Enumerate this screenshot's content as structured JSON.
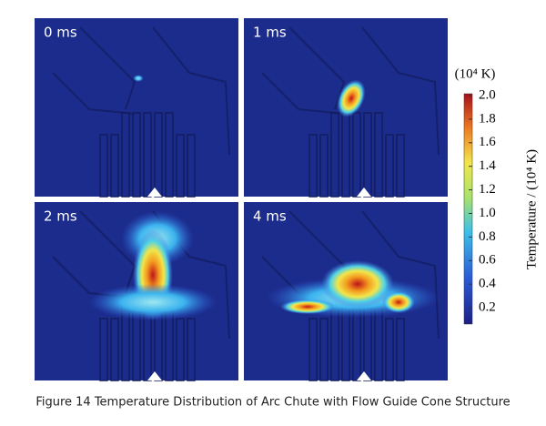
{
  "panels": [
    {
      "label": "0 ms"
    },
    {
      "label": "1 ms"
    },
    {
      "label": "2 ms"
    },
    {
      "label": "4 ms"
    }
  ],
  "colorbar": {
    "unit": "(10⁴ K)",
    "label": "Temperature / (10⁴ K)",
    "ticks": [
      "2.0",
      "1.8",
      "1.6",
      "1.4",
      "1.2",
      "1.0",
      "0.8",
      "0.6",
      "0.4",
      "0.2"
    ]
  },
  "caption": "Figure 14 Temperature Distribution of Arc Chute with Flow Guide Cone Structure"
}
